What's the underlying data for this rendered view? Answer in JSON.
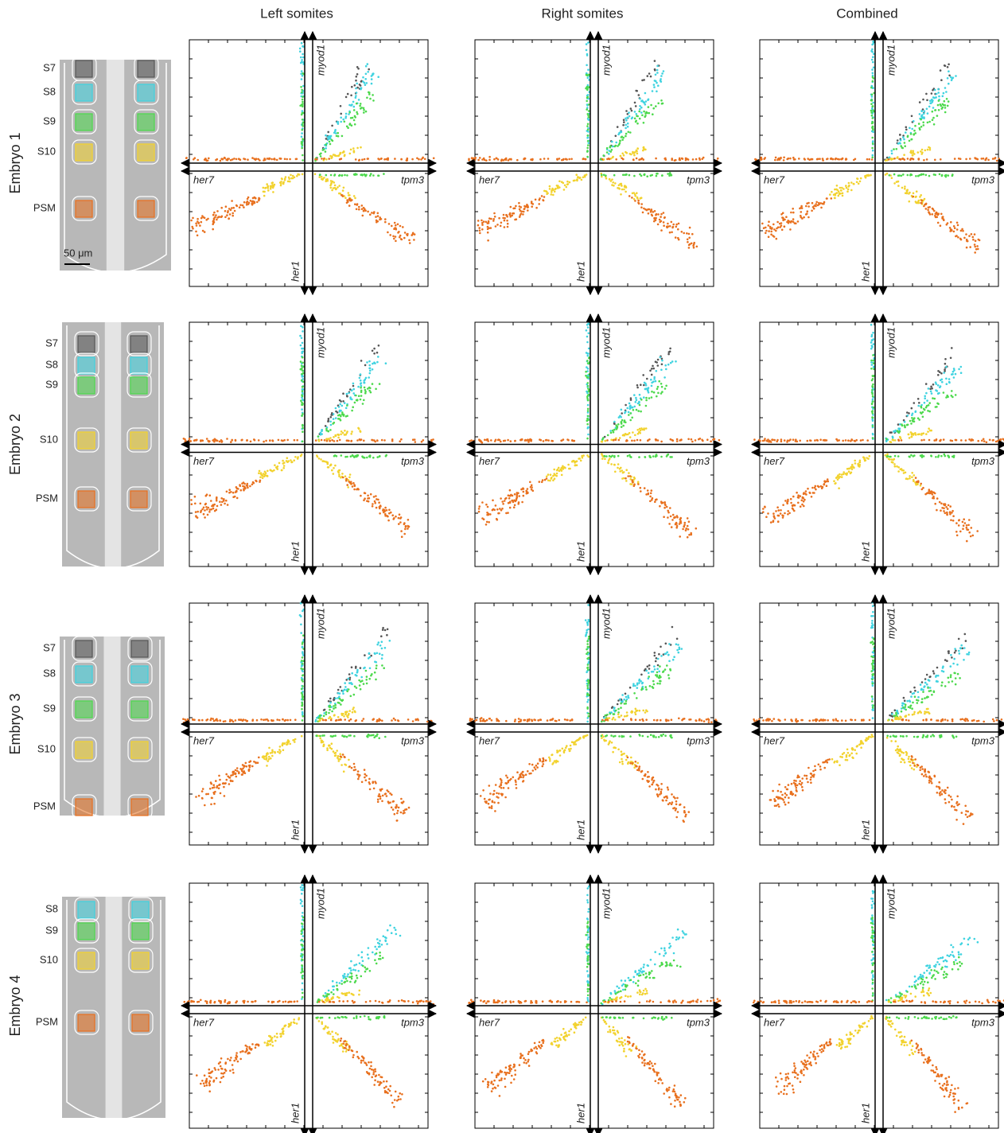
{
  "columns": [
    "Left somites",
    "Right somites",
    "Combined"
  ],
  "axis_labels": {
    "up": "myod1",
    "right": "tpm3",
    "left": "her7",
    "down": "her1"
  },
  "rows": [
    {
      "label": "Embryo 1",
      "scale_bar": "50 μm",
      "regions": [
        {
          "label": "S7",
          "color": "#555555"
        },
        {
          "label": "S8",
          "color": "#3fd3e0"
        },
        {
          "label": "S9",
          "color": "#4cd94c"
        },
        {
          "label": "S10",
          "color": "#f2d22e"
        },
        {
          "label": "PSM",
          "color": "#e8701e"
        }
      ]
    },
    {
      "label": "Embryo 2",
      "regions": [
        {
          "label": "S7",
          "color": "#555555"
        },
        {
          "label": "S8",
          "color": "#3fd3e0"
        },
        {
          "label": "S9",
          "color": "#4cd94c"
        },
        {
          "label": "S10",
          "color": "#f2d22e"
        },
        {
          "label": "PSM",
          "color": "#e8701e"
        }
      ]
    },
    {
      "label": "Embryo 3",
      "regions": [
        {
          "label": "S7",
          "color": "#555555"
        },
        {
          "label": "S8",
          "color": "#3fd3e0"
        },
        {
          "label": "S9",
          "color": "#4cd94c"
        },
        {
          "label": "S10",
          "color": "#f2d22e"
        },
        {
          "label": "PSM",
          "color": "#e8701e"
        }
      ]
    },
    {
      "label": "Embryo 4",
      "regions": [
        {
          "label": "S8",
          "color": "#3fd3e0"
        },
        {
          "label": "S9",
          "color": "#4cd94c"
        },
        {
          "label": "S10",
          "color": "#f2d22e"
        },
        {
          "label": "PSM",
          "color": "#e8701e"
        }
      ]
    }
  ]
}
